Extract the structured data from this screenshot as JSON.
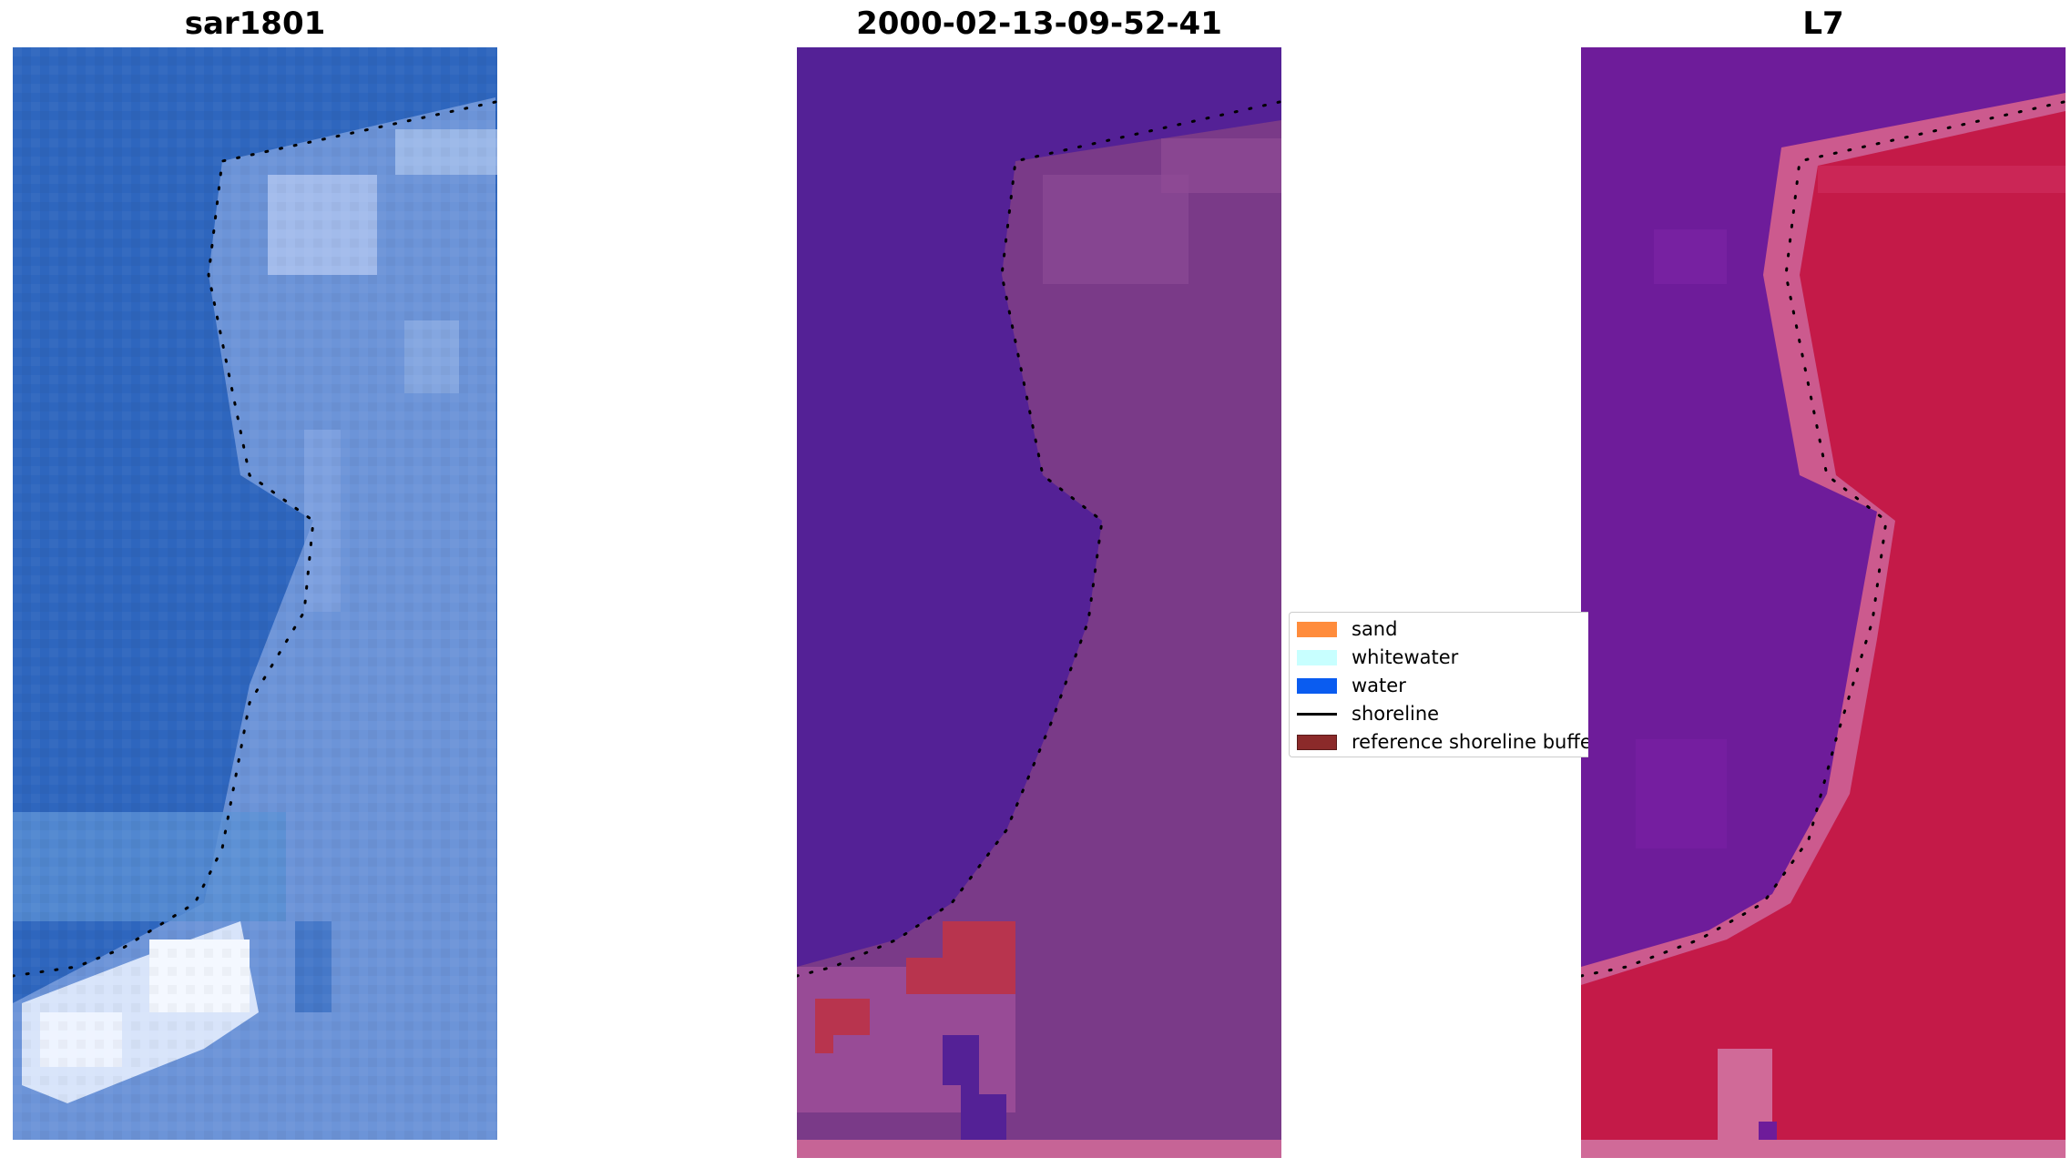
{
  "panels": [
    {
      "id": "rgb",
      "title": "sar1801"
    },
    {
      "id": "classified",
      "title": "2000-02-13-09-52-41"
    },
    {
      "id": "index",
      "title": "L7"
    }
  ],
  "legend": {
    "items": [
      {
        "label": "sand",
        "color": "#ff8c3c",
        "kind": "patch"
      },
      {
        "label": "whitewater",
        "color": "#c8ffff",
        "kind": "patch"
      },
      {
        "label": "water",
        "color": "#0a5cf0",
        "kind": "patch"
      },
      {
        "label": "shoreline",
        "color": "#000000",
        "kind": "line"
      },
      {
        "label": "reference shoreline buffer",
        "color": "#8b2a2a",
        "kind": "patch"
      }
    ]
  },
  "colors": {
    "rgb_water": "#2e66be",
    "rgb_land": "#6c94d8",
    "rgb_surf": "#e8f0ff",
    "class_water": "#542196",
    "class_land": "#7a3a88",
    "class_buffer": "#b8344e",
    "class_strip": "#c66496",
    "index_water": "#6e1c9a",
    "index_land": "#c41a48",
    "index_edge": "#cc5a8e",
    "shoreline_dots": "#000000"
  }
}
